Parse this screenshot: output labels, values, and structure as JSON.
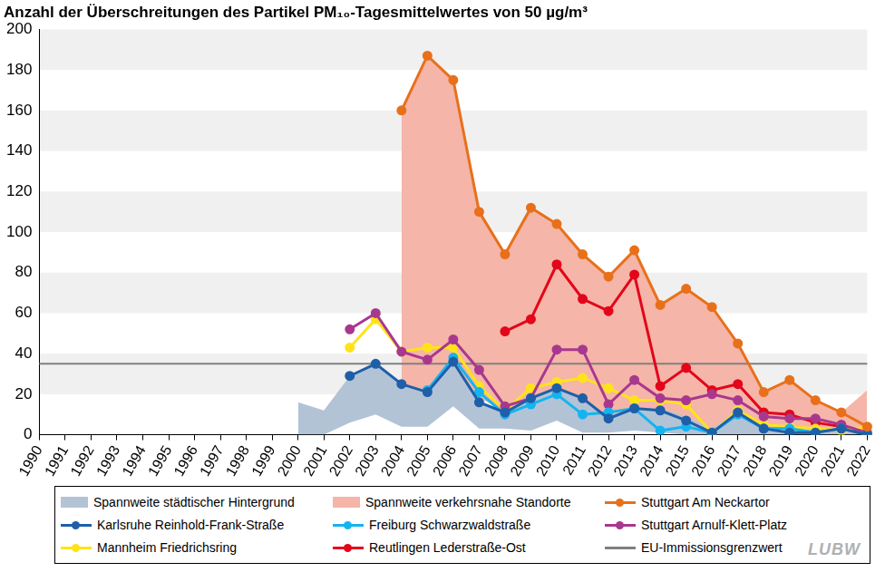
{
  "chart_data": {
    "type": "line",
    "title": "Anzahl der Überschreitungen des Partikel PM₁₀-Tagesmittelwertes von 50 µg/m³",
    "categories": [
      "1990",
      "1991",
      "1992",
      "1993",
      "1994",
      "1995",
      "1996",
      "1997",
      "1998",
      "1999",
      "2000",
      "2001",
      "2002",
      "2003",
      "2004",
      "2005",
      "2006",
      "2007",
      "2008",
      "2009",
      "2010",
      "2011",
      "2012",
      "2013",
      "2014",
      "2015",
      "2016",
      "2017",
      "2018",
      "2019",
      "2020",
      "2021",
      "2022"
    ],
    "ylim": [
      0,
      200
    ],
    "yticks": [
      0,
      20,
      40,
      60,
      80,
      100,
      120,
      140,
      160,
      180,
      200
    ],
    "grid": true,
    "legend": "bottom",
    "annotations": [
      "LUBW"
    ],
    "series": [
      {
        "name": "Spannweite städtischer Hintergrund",
        "type": "range",
        "color": "#b3c3d6",
        "values": [
          null,
          null,
          null,
          null,
          null,
          null,
          null,
          null,
          null,
          null,
          [
            0,
            16
          ],
          [
            0,
            12
          ],
          [
            6,
            29
          ],
          [
            10,
            35
          ],
          [
            4,
            25
          ],
          [
            4,
            21
          ],
          [
            14,
            36
          ],
          [
            3,
            17
          ],
          [
            3,
            11
          ],
          [
            2,
            17
          ],
          [
            7,
            23
          ],
          [
            1,
            17
          ],
          [
            1,
            9
          ],
          [
            2,
            13
          ],
          [
            1,
            13
          ],
          [
            0,
            9
          ],
          [
            0,
            3
          ],
          [
            0,
            12
          ],
          [
            0,
            3
          ],
          [
            0,
            2
          ],
          [
            0,
            2
          ],
          [
            0,
            1
          ],
          [
            0,
            1
          ]
        ]
      },
      {
        "name": "Spannweite verkehrsnahe Standorte",
        "type": "range",
        "color": "#f5b5a8",
        "values": [
          null,
          null,
          null,
          null,
          null,
          null,
          null,
          null,
          null,
          null,
          null,
          null,
          null,
          null,
          [
            20,
            160
          ],
          [
            21,
            187
          ],
          [
            28,
            175
          ],
          [
            18,
            110
          ],
          [
            12,
            89
          ],
          [
            17,
            112
          ],
          [
            20,
            104
          ],
          [
            10,
            89
          ],
          [
            8,
            78
          ],
          [
            12,
            91
          ],
          [
            2,
            64
          ],
          [
            3,
            72
          ],
          [
            1,
            63
          ],
          [
            7,
            45
          ],
          [
            3,
            21
          ],
          [
            2,
            27
          ],
          [
            1,
            17
          ],
          [
            1,
            11
          ],
          [
            0,
            22
          ]
        ]
      },
      {
        "name": "Stuttgart Am Neckartor",
        "type": "line",
        "marker": "circle",
        "color": "#e8701a",
        "values": [
          null,
          null,
          null,
          null,
          null,
          null,
          null,
          null,
          null,
          null,
          null,
          null,
          null,
          null,
          160,
          187,
          175,
          110,
          89,
          112,
          104,
          89,
          78,
          91,
          64,
          72,
          63,
          45,
          21,
          27,
          17,
          11,
          4
        ]
      },
      {
        "name": "Karlsruhe Reinhold-Frank-Straße",
        "type": "line",
        "marker": "circle",
        "color": "#1f5fa8",
        "values": [
          null,
          null,
          null,
          null,
          null,
          null,
          null,
          null,
          null,
          null,
          null,
          null,
          29,
          35,
          25,
          21,
          36,
          16,
          11,
          18,
          23,
          18,
          8,
          13,
          12,
          7,
          1,
          11,
          3,
          1,
          1,
          3,
          0
        ]
      },
      {
        "name": "Freiburg Schwarzwaldstraße",
        "type": "line",
        "marker": "circle",
        "color": "#14b4ef",
        "values": [
          null,
          null,
          null,
          null,
          null,
          null,
          null,
          null,
          null,
          null,
          null,
          null,
          null,
          null,
          null,
          22,
          38,
          21,
          10,
          15,
          20,
          10,
          11,
          13,
          2,
          4,
          1,
          10,
          3,
          3,
          1,
          3,
          0
        ]
      },
      {
        "name": "Stuttgart Arnulf-Klett-Platz",
        "type": "line",
        "marker": "circle",
        "color": "#a8388f",
        "values": [
          null,
          null,
          null,
          null,
          null,
          null,
          null,
          null,
          null,
          null,
          null,
          null,
          52,
          60,
          41,
          37,
          47,
          32,
          14,
          18,
          42,
          42,
          15,
          27,
          18,
          17,
          20,
          17,
          9,
          8,
          8,
          5,
          1
        ]
      },
      {
        "name": "Mannheim Friedrichsring",
        "type": "line",
        "marker": "circle",
        "color": "#ffe31a",
        "values": [
          null,
          null,
          null,
          null,
          null,
          null,
          null,
          null,
          null,
          null,
          null,
          null,
          43,
          57,
          41,
          43,
          43,
          24,
          12,
          23,
          26,
          28,
          23,
          17,
          17,
          15,
          1,
          12,
          5,
          4,
          3,
          2,
          4
        ]
      },
      {
        "name": "Reutlingen Lederstraße-Ost",
        "type": "line",
        "marker": "circle",
        "color": "#e3061b",
        "values": [
          null,
          null,
          null,
          null,
          null,
          null,
          null,
          null,
          null,
          null,
          null,
          null,
          null,
          null,
          null,
          null,
          null,
          null,
          51,
          57,
          84,
          67,
          61,
          79,
          24,
          33,
          22,
          25,
          11,
          10,
          6,
          4,
          0
        ]
      },
      {
        "name": "EU-Immissionsgrenzwert",
        "type": "line",
        "marker": "none",
        "color": "#808080",
        "values": [
          35,
          35,
          35,
          35,
          35,
          35,
          35,
          35,
          35,
          35,
          35,
          35,
          35,
          35,
          35,
          35,
          35,
          35,
          35,
          35,
          35,
          35,
          35,
          35,
          35,
          35,
          35,
          35,
          35,
          35,
          35,
          35,
          35
        ]
      }
    ]
  }
}
